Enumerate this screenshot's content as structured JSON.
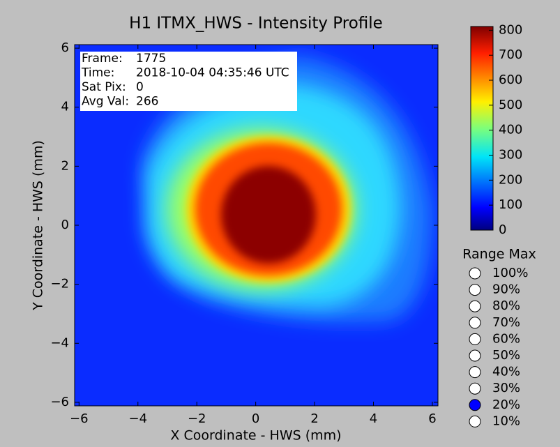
{
  "chart_data": {
    "type": "heatmap",
    "title": "H1 ITMX_HWS - Intensity Profile",
    "x_label": "X Coordinate - HWS (mm)",
    "y_label": "Y Coordinate - HWS (mm)",
    "xlim": [
      -6.15,
      6.19
    ],
    "ylim": [
      -6.12,
      6.12
    ],
    "xticks": [
      {
        "value": -6,
        "label": "−6"
      },
      {
        "value": -4,
        "label": "−4"
      },
      {
        "value": -2,
        "label": "−2"
      },
      0,
      2,
      4,
      6
    ],
    "yticks": [
      {
        "value": -6,
        "label": "−6"
      },
      {
        "value": -4,
        "label": "−4"
      },
      {
        "value": -2,
        "label": "−2"
      },
      0,
      2,
      4,
      6
    ],
    "colormap": "jet",
    "colorbar": {
      "lim": [
        0,
        815
      ],
      "ticks": [
        0,
        100,
        200,
        300,
        400,
        500,
        600,
        700,
        800
      ]
    },
    "info_box": [
      [
        "Frame:",
        "1775"
      ],
      [
        "Time:",
        "2018-10-04 04:35:46 UTC"
      ],
      [
        "Sat Pix:",
        "0"
      ],
      [
        "Avg Val:",
        "266"
      ]
    ]
  },
  "range_max": {
    "title": "Range Max",
    "options": [
      "100%",
      "90%",
      "80%",
      "70%",
      "60%",
      "50%",
      "40%",
      "30%",
      "20%",
      "10%"
    ],
    "selected": 8
  }
}
